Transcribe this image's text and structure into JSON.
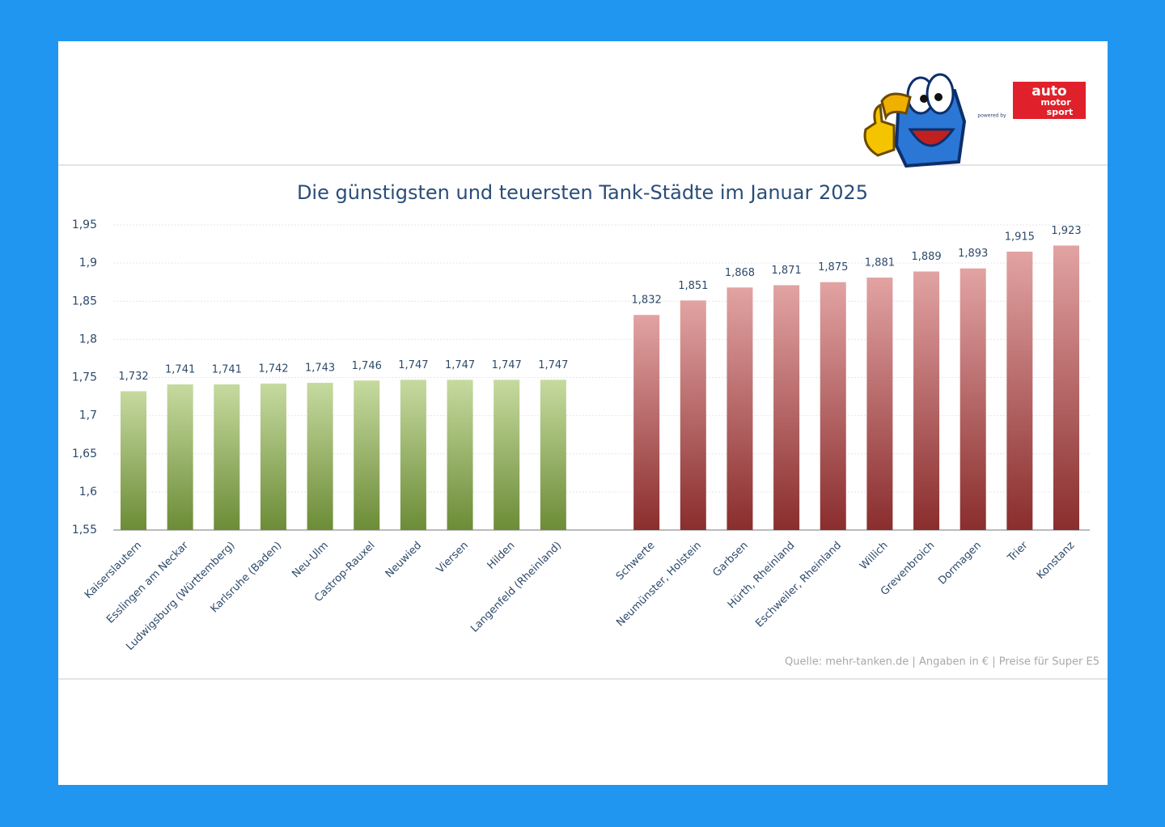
{
  "logo": {
    "powered_by": "powered by",
    "brand": [
      "auto",
      "motor",
      "sport"
    ]
  },
  "chart_data": {
    "type": "bar",
    "title": "Die günstigsten und teuersten Tank-Städte im Januar 2025",
    "source": "Quelle: mehr-tanken.de | Angaben in € | Preise für Super E5",
    "ylim": [
      1.55,
      1.95
    ],
    "yticks": [
      {
        "value": 1.55,
        "label": "1,55"
      },
      {
        "value": 1.6,
        "label": "1,6"
      },
      {
        "value": 1.65,
        "label": "1,65"
      },
      {
        "value": 1.7,
        "label": "1,7"
      },
      {
        "value": 1.75,
        "label": "1,75"
      },
      {
        "value": 1.8,
        "label": "1,8"
      },
      {
        "value": 1.85,
        "label": "1,85"
      },
      {
        "value": 1.9,
        "label": "1,9"
      },
      {
        "value": 1.95,
        "label": "1,95"
      }
    ],
    "grid": true,
    "groups": [
      {
        "colors": [
          "#c6da9f",
          "#6c8c37"
        ],
        "categories": [
          "Kaiserslautern",
          "Esslingen am Neckar",
          "Ludwigsburg (Württemberg)",
          "Karlsruhe (Baden)",
          "Neu-Ulm",
          "Castrop-Rauxel",
          "Neuwied",
          "Viersen",
          "Hilden",
          "Langenfeld (Rheinland)"
        ],
        "values": [
          1.732,
          1.741,
          1.741,
          1.742,
          1.743,
          1.746,
          1.747,
          1.747,
          1.747,
          1.747
        ],
        "value_labels": [
          "1,732",
          "1,741",
          "1,741",
          "1,742",
          "1,743",
          "1,746",
          "1,747",
          "1,747",
          "1,747",
          "1,747"
        ]
      },
      {
        "colors": [
          "#e2a3a3",
          "#8a2d2d"
        ],
        "categories": [
          "Schwerte",
          "Neumünster, Holstein",
          "Garbsen",
          "Hürth, Rheinland",
          "Eschweiler, Rheinland",
          "Willich",
          "Grevenbroich",
          "Dormagen",
          "Trier",
          "Konstanz"
        ],
        "values": [
          1.832,
          1.851,
          1.868,
          1.871,
          1.875,
          1.881,
          1.889,
          1.893,
          1.915,
          1.923
        ],
        "value_labels": [
          "1,832",
          "1,851",
          "1,868",
          "1,871",
          "1,875",
          "1,881",
          "1,889",
          "1,893",
          "1,915",
          "1,923"
        ]
      }
    ]
  }
}
